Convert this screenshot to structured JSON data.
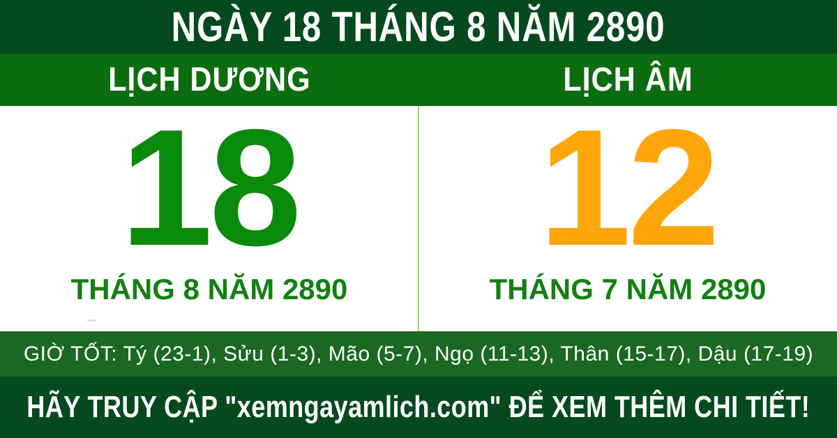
{
  "header": {
    "title": "NGÀY 18 THÁNG 8 NĂM 2890"
  },
  "calendar_type_bar": {
    "solar_label": "LỊCH DƯƠNG",
    "lunar_label": "LỊCH ÂM"
  },
  "solar_panel": {
    "day": "18",
    "month_year": "THÁNG 8 NĂM 2890"
  },
  "lunar_panel": {
    "day": "12",
    "month_year": "THÁNG 7 NĂM 2890"
  },
  "good_hours_bar": {
    "text": "GIỜ TỐT: Tý (23-1), Sửu (1-3), Mão (5-7), Ngọ (11-13), Thân (15-17), Dậu (17-19)"
  },
  "footer": {
    "text": "HÃY TRUY CẬP \"xemngayamlich.com\" ĐỂ XEM THÊM CHI TIẾT!"
  },
  "colors": {
    "dark_green": "#05491E",
    "bright_green": "#0C6D10",
    "good_hours_green": "#1B6823",
    "solar_day_green": "#0A8A0A",
    "lunar_day_orange": "#FFA60A",
    "month_text_green": "#128012",
    "divider_light_green": "#A2D468",
    "text_white": "#FFFFFF"
  }
}
